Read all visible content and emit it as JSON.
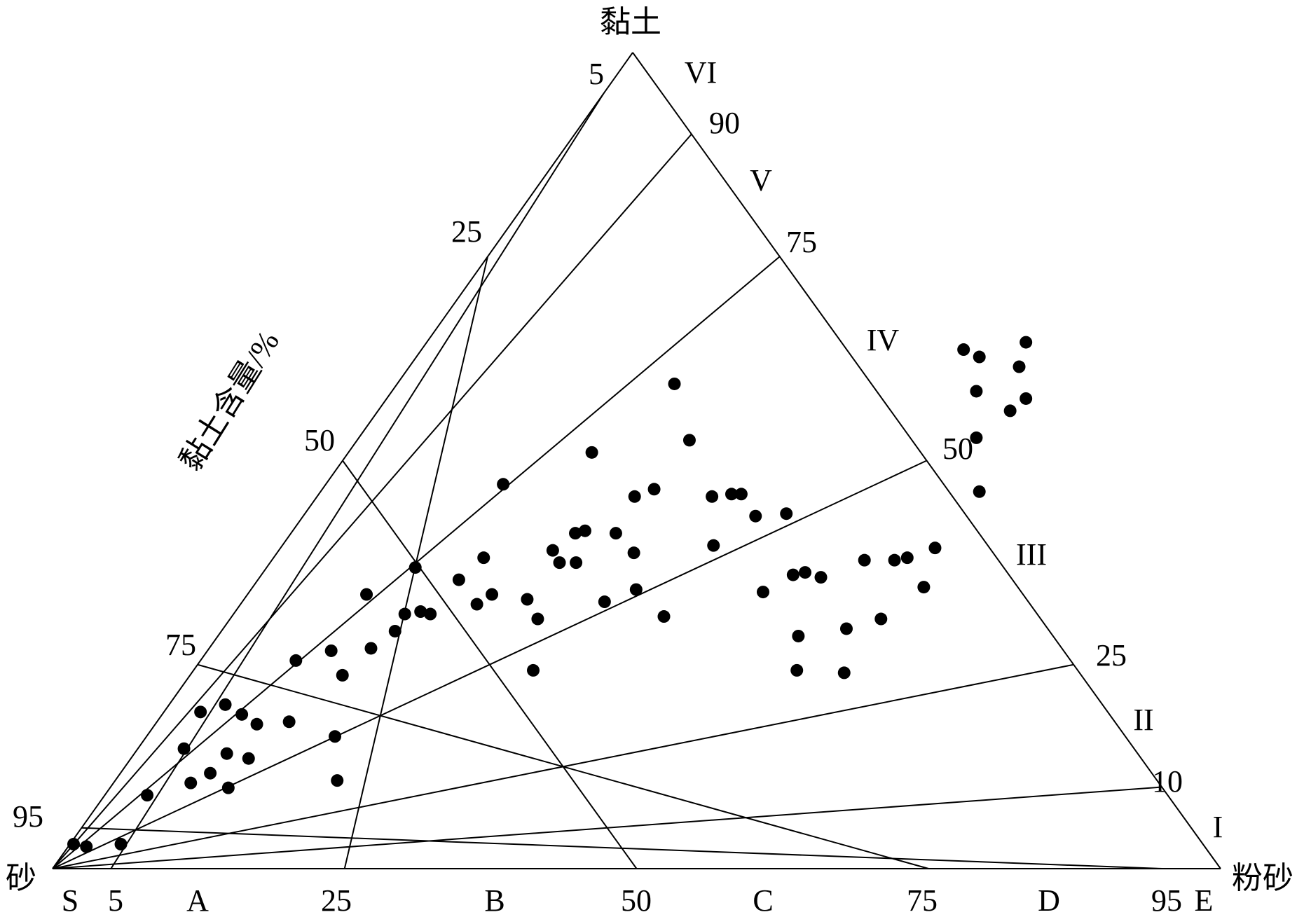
{
  "chart_data": {
    "type": "scatter",
    "subtype": "ternary",
    "vertices": {
      "top": "黏土",
      "left": "砂",
      "right": "粉砂"
    },
    "axis_title": "黏土含量/%",
    "bottom_axis": {
      "labels": [
        "S",
        "5",
        "A",
        "25",
        "B",
        "50",
        "C",
        "75",
        "D",
        "95",
        "E"
      ]
    },
    "left_edge_ticks": [
      "5",
      "25",
      "50",
      "75",
      "95"
    ],
    "right_edge_ticks": [
      "90",
      "75",
      "50",
      "25",
      "10"
    ],
    "zone_labels": [
      "VI",
      "V",
      "IV",
      "III",
      "II",
      "I"
    ],
    "ratio_lines": {
      "clay_over_clay_plus_silt": [
        0.1,
        0.25,
        0.5,
        0.75,
        0.9
      ]
    },
    "silt_over_silt_plus_sand_lines": [
      0.05,
      0.25,
      0.5,
      0.75,
      0.95
    ],
    "grid": false,
    "marker": "filled-circle",
    "series": [
      {
        "points": [
          {
            "x": 0.028,
            "y": 0.01
          },
          {
            "x": 0.045,
            "y": 0.009
          },
          {
            "x": 0.091,
            "y": 0.01
          },
          {
            "x": 0.126,
            "y": 0.03
          },
          {
            "x": 0.175,
            "y": 0.049
          },
          {
            "x": 0.184,
            "y": 0.035
          },
          {
            "x": 0.197,
            "y": 0.064
          },
          {
            "x": 0.21,
            "y": 0.039
          },
          {
            "x": 0.23,
            "y": 0.067
          },
          {
            "x": 0.232,
            "y": 0.047
          },
          {
            "x": 0.234,
            "y": 0.033
          },
          {
            "x": 0.252,
            "y": 0.063
          },
          {
            "x": 0.261,
            "y": 0.045
          },
          {
            "x": 0.272,
            "y": 0.059
          },
          {
            "x": 0.324,
            "y": 0.085
          },
          {
            "x": 0.315,
            "y": 0.06
          },
          {
            "x": 0.371,
            "y": 0.089
          },
          {
            "x": 0.376,
            "y": 0.054
          },
          {
            "x": 0.379,
            "y": 0.036
          },
          {
            "x": 0.386,
            "y": 0.079
          },
          {
            "x": 0.424,
            "y": 0.09
          },
          {
            "x": 0.418,
            "y": 0.112
          },
          {
            "x": 0.456,
            "y": 0.097
          },
          {
            "x": 0.469,
            "y": 0.104
          },
          {
            "x": 0.49,
            "y": 0.105
          },
          {
            "x": 0.483,
            "y": 0.123
          },
          {
            "x": 0.503,
            "y": 0.104
          },
          {
            "x": 0.541,
            "y": 0.118
          },
          {
            "x": 0.565,
            "y": 0.108
          },
          {
            "x": 0.574,
            "y": 0.127
          },
          {
            "x": 0.585,
            "y": 0.112
          },
          {
            "x": 0.6,
            "y": 0.157
          },
          {
            "x": 0.632,
            "y": 0.11
          },
          {
            "x": 0.675,
            "y": 0.125
          },
          {
            "x": 0.696,
            "y": 0.137
          },
          {
            "x": 0.709,
            "y": 0.138
          },
          {
            "x": 0.75,
            "y": 0.137
          },
          {
            "x": 0.646,
            "y": 0.102
          },
          {
            "x": 0.64,
            "y": 0.081
          },
          {
            "x": 0.697,
            "y": 0.125
          },
          {
            "x": 0.666,
            "y": 0.13
          },
          {
            "x": 0.735,
            "y": 0.109
          },
          {
            "x": 0.774,
            "y": 0.129
          },
          {
            "x": 0.777,
            "y": 0.114
          },
          {
            "x": 0.814,
            "y": 0.103
          },
          {
            "x": 0.718,
            "y": 0.17
          },
          {
            "x": 0.775,
            "y": 0.152
          },
          {
            "x": 0.801,
            "y": 0.155
          },
          {
            "x": 0.828,
            "y": 0.198
          },
          {
            "x": 0.848,
            "y": 0.175
          },
          {
            "x": 0.878,
            "y": 0.152
          },
          {
            "x": 0.88,
            "y": 0.132
          },
          {
            "x": 0.904,
            "y": 0.153
          },
          {
            "x": 0.917,
            "y": 0.153
          },
          {
            "x": 0.936,
            "y": 0.144
          },
          {
            "x": 0.946,
            "y": 0.113
          },
          {
            "x": 0.977,
            "y": 0.145
          },
          {
            "x": 0.986,
            "y": 0.12
          },
          {
            "x": 0.993,
            "y": 0.095
          },
          {
            "x": 0.991,
            "y": 0.081
          },
          {
            "x": 1.002,
            "y": 0.121
          },
          {
            "x": 1.023,
            "y": 0.119
          },
          {
            "x": 1.054,
            "y": 0.08
          },
          {
            "x": 1.057,
            "y": 0.098
          },
          {
            "x": 1.103,
            "y": 0.102
          },
          {
            "x": 1.081,
            "y": 0.126
          },
          {
            "x": 1.121,
            "y": 0.126
          },
          {
            "x": 1.138,
            "y": 0.127
          },
          {
            "x": 1.16,
            "y": 0.115
          },
          {
            "x": 1.175,
            "y": 0.131
          },
          {
            "x": 1.23,
            "y": 0.176
          },
          {
            "x": 1.23,
            "y": 0.195
          },
          {
            "x": 1.234,
            "y": 0.209
          },
          {
            "x": 1.213,
            "y": 0.212
          },
          {
            "x": 1.275,
            "y": 0.187
          },
          {
            "x": 1.296,
            "y": 0.215
          },
          {
            "x": 1.296,
            "y": 0.192
          },
          {
            "x": 1.287,
            "y": 0.205
          },
          {
            "x": 1.234,
            "y": 0.154
          }
        ]
      }
    ]
  }
}
